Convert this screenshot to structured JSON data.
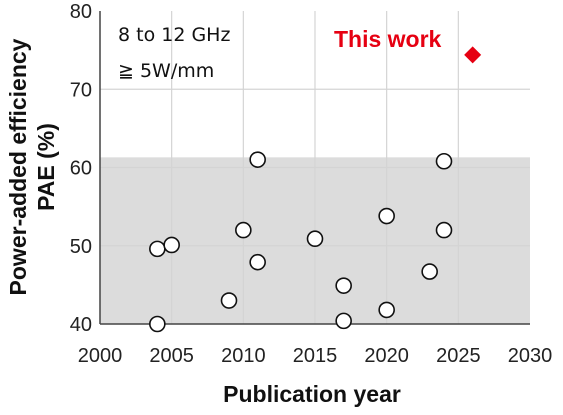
{
  "chart_data": {
    "type": "scatter",
    "xlabel": "Publication year",
    "ylabel_line1": "Power-added efficiency",
    "ylabel_line2": "PAE (%)",
    "xlim": [
      2000,
      2030
    ],
    "ylim": [
      40,
      80
    ],
    "xticks": [
      "2000",
      "2005",
      "2010",
      "2015",
      "2020",
      "2025",
      "2030"
    ],
    "yticks": [
      "40",
      "50",
      "60",
      "70",
      "80"
    ],
    "grid": true,
    "shaded_region": {
      "y_min": 40,
      "y_max": 61.3,
      "color": "#dcdcdc"
    },
    "annotations": [
      "8 to 12 GHz",
      "≧ 5W/mm"
    ],
    "series": [
      {
        "marker": "circle",
        "color": "#ffffff",
        "points": [
          {
            "x": 2004,
            "y": 40.0
          },
          {
            "x": 2004,
            "y": 49.6
          },
          {
            "x": 2005,
            "y": 50.1
          },
          {
            "x": 2009,
            "y": 43.0
          },
          {
            "x": 2010,
            "y": 52.0
          },
          {
            "x": 2011,
            "y": 47.9
          },
          {
            "x": 2011,
            "y": 61.0
          },
          {
            "x": 2015,
            "y": 50.9
          },
          {
            "x": 2017,
            "y": 40.4
          },
          {
            "x": 2017,
            "y": 44.9
          },
          {
            "x": 2020,
            "y": 41.8
          },
          {
            "x": 2020,
            "y": 53.8
          },
          {
            "x": 2023,
            "y": 46.7
          },
          {
            "x": 2024,
            "y": 52.0
          },
          {
            "x": 2024,
            "y": 60.8
          }
        ]
      },
      {
        "name": "This work",
        "marker": "diamond",
        "color": "#e60012",
        "points": [
          {
            "x": 2026,
            "y": 74.4
          }
        ]
      }
    ]
  }
}
